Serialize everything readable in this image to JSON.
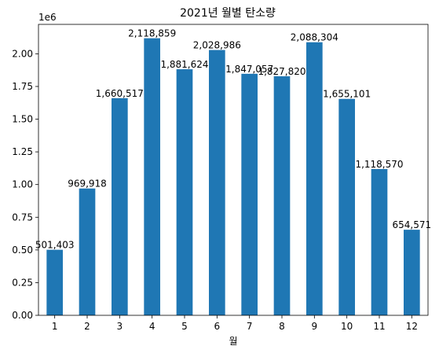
{
  "chart_data": {
    "type": "bar",
    "title": "2021년 월별 탄소량",
    "xlabel": "월",
    "ylabel": "",
    "y_offset_label": "1e6",
    "categories": [
      "1",
      "2",
      "3",
      "4",
      "5",
      "6",
      "7",
      "8",
      "9",
      "10",
      "11",
      "12"
    ],
    "values": [
      501403,
      969918,
      1660517,
      2118859,
      1881624,
      2028986,
      1847057,
      1827820,
      2088304,
      1655101,
      1118570,
      654571
    ],
    "data_labels": [
      "501,403",
      "969,918",
      "1,660,517",
      "2,118,859",
      "1,881,624",
      "2,028,986",
      "1,847,057",
      "1,827,820",
      "2,088,304",
      "1,655,101",
      "1,118,570",
      "654,571"
    ],
    "ylim": [
      0,
      2224802
    ],
    "yticks": [
      0,
      250000,
      500000,
      750000,
      1000000,
      1250000,
      1500000,
      1750000,
      2000000
    ],
    "ytick_labels": [
      "0.00",
      "0.25",
      "0.50",
      "0.75",
      "1.00",
      "1.25",
      "1.50",
      "1.75",
      "2.00"
    ],
    "bar_color": "#1f77b4",
    "grid": false,
    "legend": "none"
  }
}
